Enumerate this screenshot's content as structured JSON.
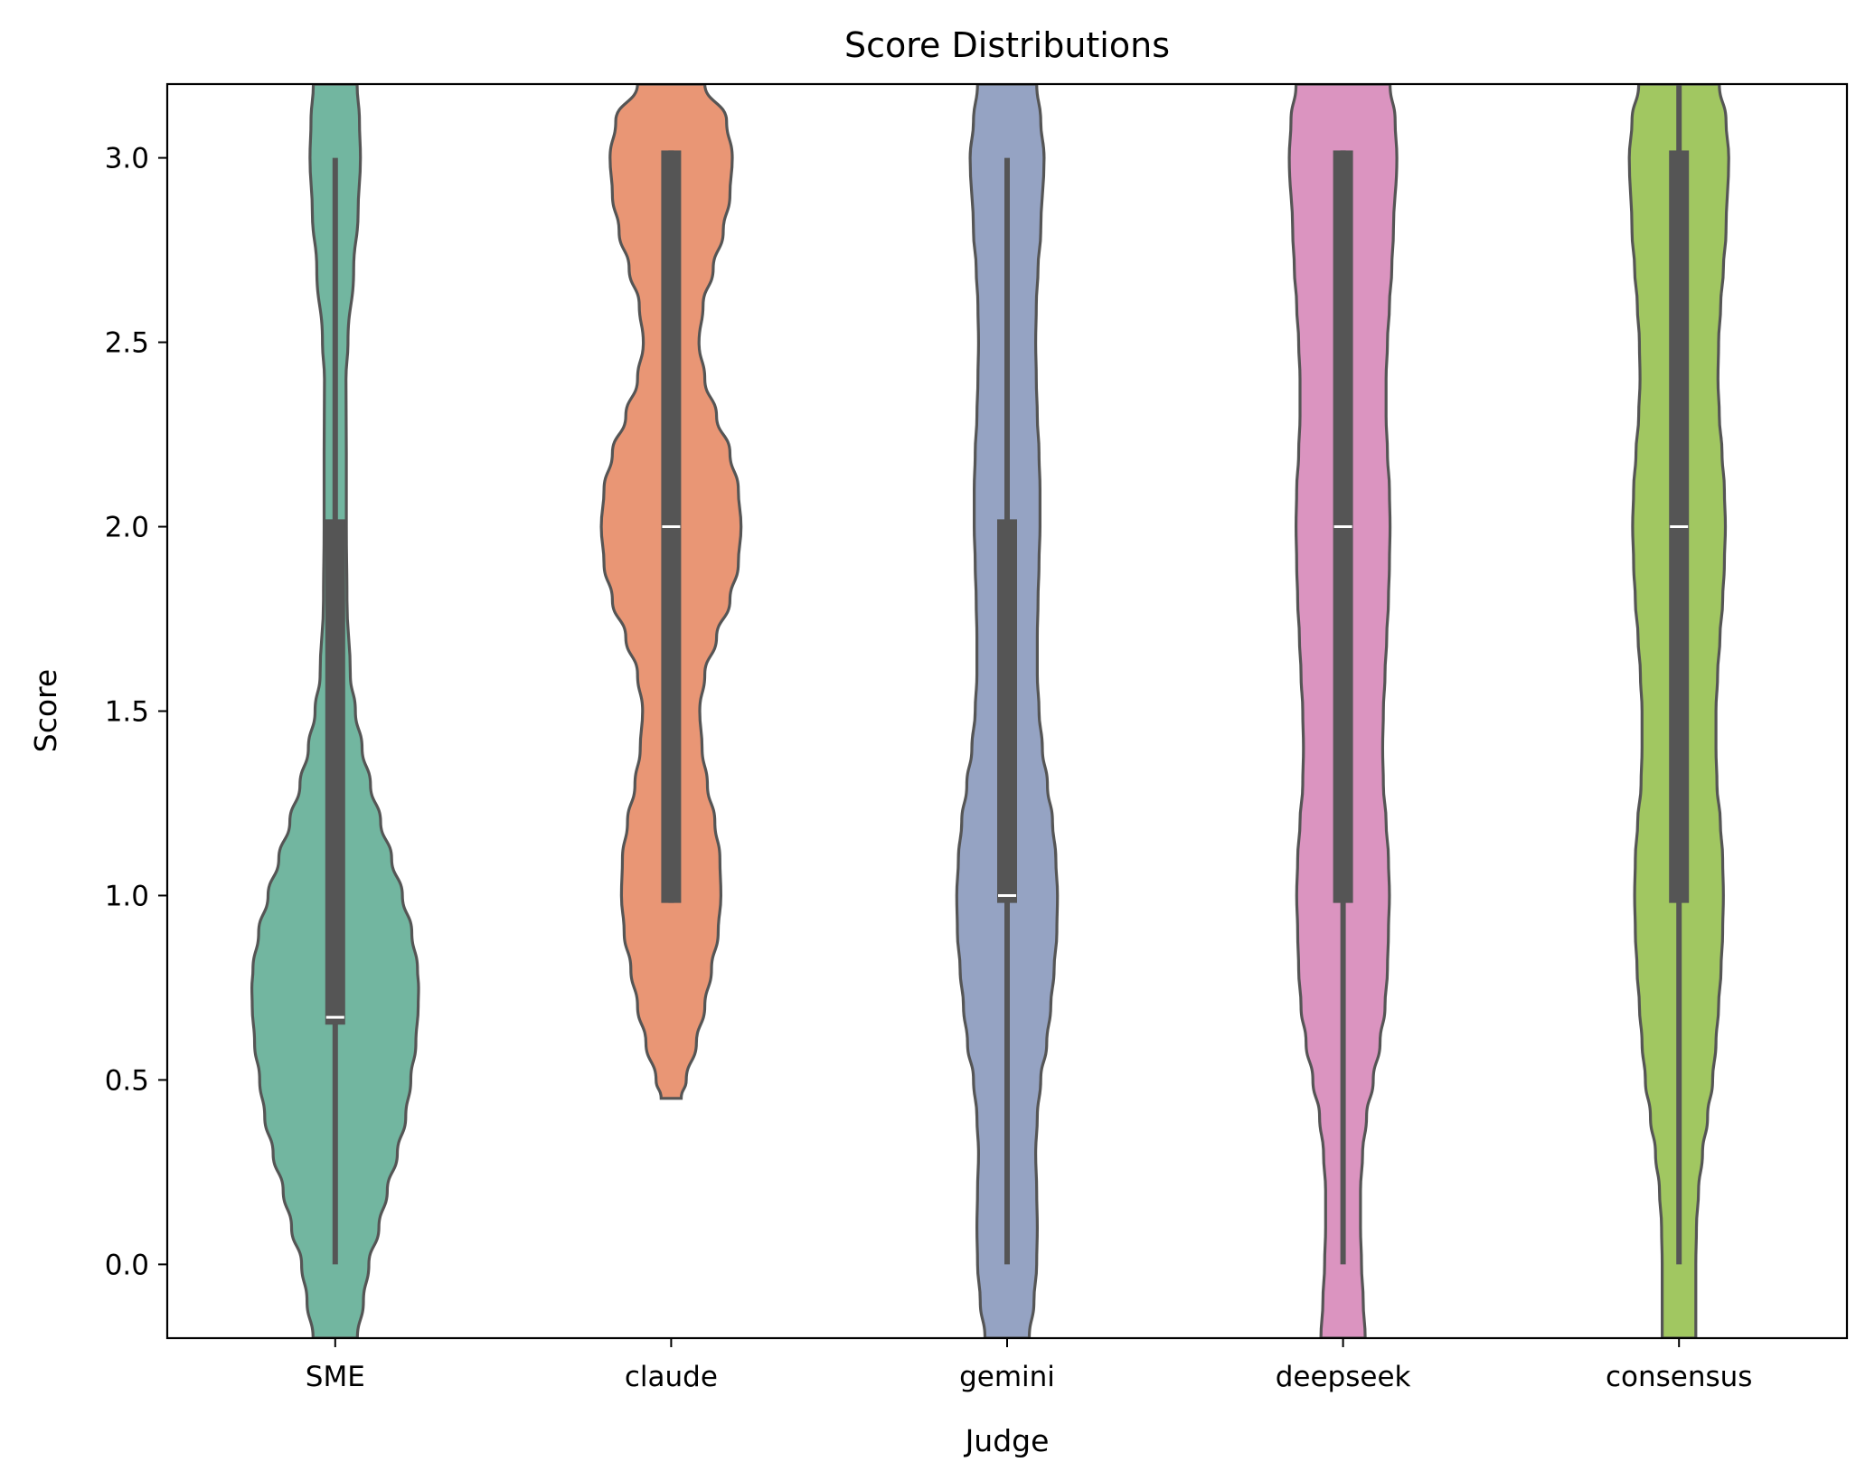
{
  "chart_data": {
    "type": "violin",
    "title": "Score Distributions",
    "xlabel": "Judge",
    "ylabel": "Score",
    "ylim": [
      -0.2,
      3.2
    ],
    "yticks": [
      "0.0",
      "0.5",
      "1.0",
      "1.5",
      "2.0",
      "2.5",
      "3.0"
    ],
    "ytick_values": [
      0.0,
      0.5,
      1.0,
      1.5,
      2.0,
      2.5,
      3.0
    ],
    "categories": [
      "SME",
      "claude",
      "gemini",
      "deepseek",
      "consensus"
    ],
    "grid": false,
    "series": [
      {
        "category": "SME",
        "color": "#72b6a0",
        "median": 0.67,
        "q1": 0.65,
        "q3": 2.02,
        "whisker_low": 0.0,
        "whisker_high": 3.0,
        "density": [
          [
            -0.2,
            0.066
          ],
          [
            -0.1,
            0.084
          ],
          [
            0.0,
            0.1
          ],
          [
            0.1,
            0.13
          ],
          [
            0.2,
            0.155
          ],
          [
            0.3,
            0.185
          ],
          [
            0.4,
            0.21
          ],
          [
            0.5,
            0.225
          ],
          [
            0.6,
            0.24
          ],
          [
            0.7,
            0.247
          ],
          [
            0.75,
            0.248
          ],
          [
            0.8,
            0.245
          ],
          [
            0.9,
            0.228
          ],
          [
            1.0,
            0.2
          ],
          [
            1.1,
            0.168
          ],
          [
            1.2,
            0.135
          ],
          [
            1.3,
            0.105
          ],
          [
            1.4,
            0.08
          ],
          [
            1.5,
            0.06
          ],
          [
            1.6,
            0.045
          ],
          [
            1.8,
            0.035
          ],
          [
            2.0,
            0.033
          ],
          [
            2.2,
            0.033
          ],
          [
            2.4,
            0.032
          ],
          [
            2.5,
            0.038
          ],
          [
            2.7,
            0.055
          ],
          [
            2.85,
            0.068
          ],
          [
            3.0,
            0.075
          ],
          [
            3.1,
            0.072
          ],
          [
            3.2,
            0.065
          ]
        ]
      },
      {
        "category": "claude",
        "color": "#e99675",
        "median": 2.0,
        "q1": 0.98,
        "q3": 3.02,
        "whisker_low": 0.98,
        "whisker_high": 3.02,
        "density": [
          [
            0.45,
            0.03
          ],
          [
            0.5,
            0.045
          ],
          [
            0.6,
            0.075
          ],
          [
            0.7,
            0.1
          ],
          [
            0.8,
            0.12
          ],
          [
            0.9,
            0.14
          ],
          [
            1.0,
            0.148
          ],
          [
            1.1,
            0.145
          ],
          [
            1.2,
            0.13
          ],
          [
            1.3,
            0.108
          ],
          [
            1.4,
            0.092
          ],
          [
            1.5,
            0.085
          ],
          [
            1.6,
            0.1
          ],
          [
            1.7,
            0.135
          ],
          [
            1.8,
            0.175
          ],
          [
            1.9,
            0.2
          ],
          [
            2.0,
            0.208
          ],
          [
            2.1,
            0.2
          ],
          [
            2.2,
            0.175
          ],
          [
            2.3,
            0.135
          ],
          [
            2.4,
            0.1
          ],
          [
            2.5,
            0.083
          ],
          [
            2.6,
            0.095
          ],
          [
            2.7,
            0.125
          ],
          [
            2.8,
            0.155
          ],
          [
            2.9,
            0.175
          ],
          [
            3.0,
            0.182
          ],
          [
            3.1,
            0.165
          ],
          [
            3.2,
            0.1
          ]
        ]
      },
      {
        "category": "gemini",
        "color": "#95a3c3",
        "median": 1.0,
        "q1": 0.98,
        "q3": 2.02,
        "whisker_low": 0.0,
        "whisker_high": 3.0,
        "density": [
          [
            -0.2,
            0.066
          ],
          [
            -0.1,
            0.08
          ],
          [
            0.0,
            0.088
          ],
          [
            0.1,
            0.09
          ],
          [
            0.2,
            0.088
          ],
          [
            0.3,
            0.085
          ],
          [
            0.4,
            0.09
          ],
          [
            0.5,
            0.1
          ],
          [
            0.6,
            0.118
          ],
          [
            0.7,
            0.13
          ],
          [
            0.8,
            0.14
          ],
          [
            0.9,
            0.148
          ],
          [
            1.0,
            0.15
          ],
          [
            1.1,
            0.145
          ],
          [
            1.2,
            0.135
          ],
          [
            1.3,
            0.12
          ],
          [
            1.4,
            0.105
          ],
          [
            1.5,
            0.095
          ],
          [
            1.6,
            0.09
          ],
          [
            1.7,
            0.09
          ],
          [
            1.8,
            0.092
          ],
          [
            1.9,
            0.095
          ],
          [
            2.0,
            0.098
          ],
          [
            2.1,
            0.098
          ],
          [
            2.2,
            0.095
          ],
          [
            2.3,
            0.09
          ],
          [
            2.4,
            0.087
          ],
          [
            2.5,
            0.085
          ],
          [
            2.6,
            0.087
          ],
          [
            2.7,
            0.092
          ],
          [
            2.8,
            0.1
          ],
          [
            3.0,
            0.11
          ],
          [
            3.1,
            0.1
          ],
          [
            3.2,
            0.088
          ]
        ]
      },
      {
        "category": "deepseek",
        "color": "#db94c0",
        "median": 2.0,
        "q1": 0.98,
        "q3": 3.02,
        "whisker_low": 0.0,
        "whisker_high": 3.02,
        "density": [
          [
            -0.2,
            0.066
          ],
          [
            -0.1,
            0.06
          ],
          [
            0.0,
            0.055
          ],
          [
            0.1,
            0.052
          ],
          [
            0.2,
            0.052
          ],
          [
            0.3,
            0.058
          ],
          [
            0.4,
            0.07
          ],
          [
            0.5,
            0.09
          ],
          [
            0.6,
            0.11
          ],
          [
            0.7,
            0.125
          ],
          [
            0.8,
            0.132
          ],
          [
            0.9,
            0.135
          ],
          [
            1.0,
            0.138
          ],
          [
            1.1,
            0.135
          ],
          [
            1.2,
            0.128
          ],
          [
            1.3,
            0.12
          ],
          [
            1.4,
            0.118
          ],
          [
            1.5,
            0.12
          ],
          [
            1.6,
            0.125
          ],
          [
            1.7,
            0.13
          ],
          [
            1.8,
            0.135
          ],
          [
            1.9,
            0.138
          ],
          [
            2.0,
            0.14
          ],
          [
            2.1,
            0.138
          ],
          [
            2.2,
            0.132
          ],
          [
            2.3,
            0.128
          ],
          [
            2.4,
            0.128
          ],
          [
            2.5,
            0.132
          ],
          [
            2.6,
            0.138
          ],
          [
            2.7,
            0.145
          ],
          [
            2.8,
            0.15
          ],
          [
            3.0,
            0.16
          ],
          [
            3.1,
            0.155
          ],
          [
            3.2,
            0.14
          ]
        ]
      },
      {
        "category": "consensus",
        "color": "#a1c761",
        "median": 2.0,
        "q1": 0.98,
        "q3": 3.02,
        "whisker_low": 0.0,
        "whisker_high": 3.2,
        "density": [
          [
            -0.2,
            0.05
          ],
          [
            -0.1,
            0.05
          ],
          [
            0.0,
            0.05
          ],
          [
            0.1,
            0.052
          ],
          [
            0.2,
            0.058
          ],
          [
            0.3,
            0.07
          ],
          [
            0.4,
            0.085
          ],
          [
            0.5,
            0.1
          ],
          [
            0.6,
            0.11
          ],
          [
            0.7,
            0.118
          ],
          [
            0.8,
            0.125
          ],
          [
            0.9,
            0.13
          ],
          [
            1.0,
            0.132
          ],
          [
            1.1,
            0.13
          ],
          [
            1.2,
            0.123
          ],
          [
            1.3,
            0.113
          ],
          [
            1.4,
            0.11
          ],
          [
            1.5,
            0.11
          ],
          [
            1.6,
            0.115
          ],
          [
            1.7,
            0.122
          ],
          [
            1.8,
            0.13
          ],
          [
            1.9,
            0.135
          ],
          [
            2.0,
            0.138
          ],
          [
            2.1,
            0.135
          ],
          [
            2.2,
            0.128
          ],
          [
            2.3,
            0.12
          ],
          [
            2.4,
            0.116
          ],
          [
            2.5,
            0.118
          ],
          [
            2.6,
            0.124
          ],
          [
            2.7,
            0.132
          ],
          [
            2.8,
            0.14
          ],
          [
            3.0,
            0.148
          ],
          [
            3.1,
            0.14
          ],
          [
            3.2,
            0.12
          ]
        ]
      }
    ]
  }
}
